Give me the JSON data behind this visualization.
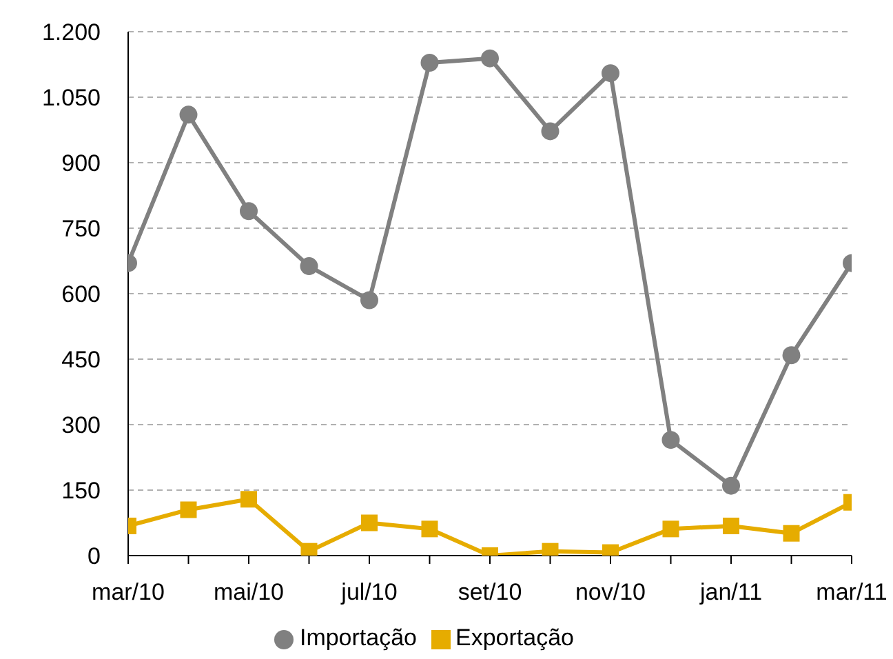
{
  "chart_data": {
    "type": "line",
    "categories": [
      "mar/10",
      null,
      "mai/10",
      null,
      "jul/10",
      null,
      "set/10",
      null,
      "nov/10",
      null,
      "jan/11",
      null,
      "mar/11"
    ],
    "series": [
      {
        "name": "Importação",
        "color": "#808080",
        "marker": "circle",
        "values": [
          670,
          1010,
          789,
          663,
          585,
          1129,
          1139,
          972,
          1105,
          265,
          160,
          459,
          670
        ]
      },
      {
        "name": "Exportação",
        "color": "#e6ac00",
        "marker": "square",
        "values": [
          68,
          105,
          129,
          10,
          75,
          61,
          0,
          10,
          7,
          61,
          68,
          51,
          122
        ]
      }
    ],
    "ylim": [
      0,
      1200
    ],
    "yticks": [
      0,
      150,
      300,
      450,
      600,
      750,
      900,
      {
        "value": 1050,
        "label": "1.050"
      },
      {
        "value": 1200,
        "label": "1.200"
      }
    ],
    "grid": "y",
    "legend": "bottom",
    "line_style": "solid"
  }
}
